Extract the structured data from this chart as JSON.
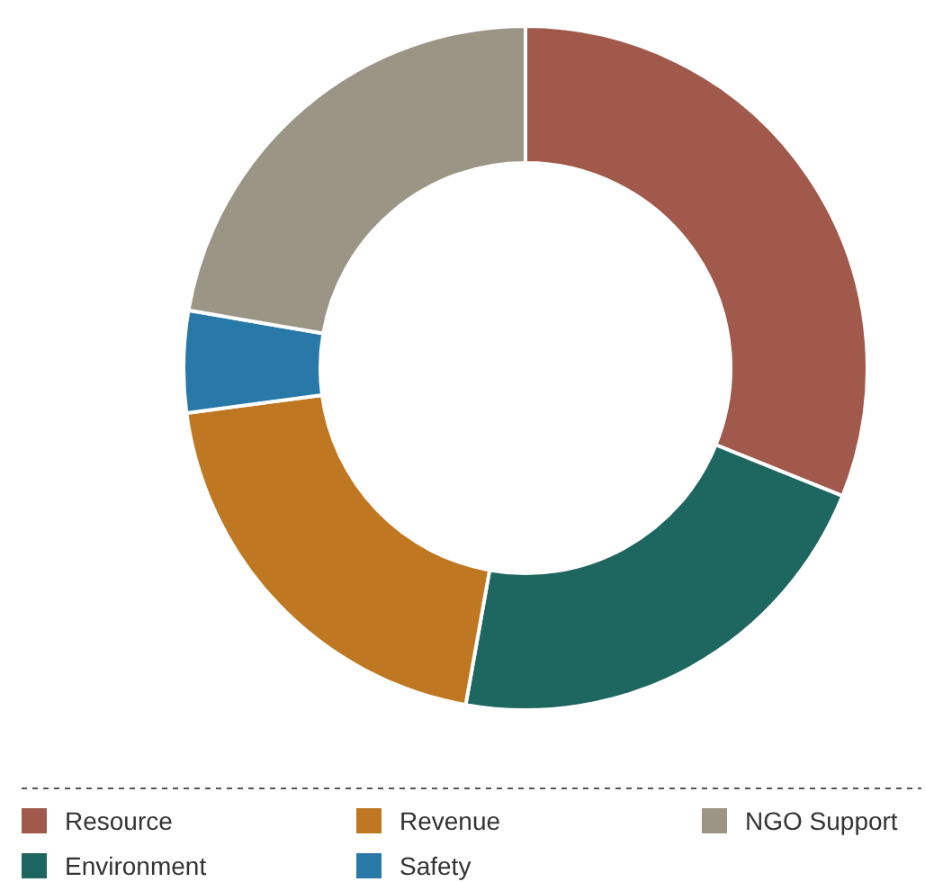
{
  "chart_data": {
    "type": "donut",
    "categories": [
      "Resource",
      "Environment",
      "Revenue",
      "Safety",
      "NGO Support"
    ],
    "values": [
      31.1,
      21.7,
      20.1,
      4.8,
      22.3
    ],
    "colors": [
      "#a0594a",
      "#1e6660",
      "#bf7722",
      "#2878a8",
      "#9b9585"
    ],
    "legend": "bottom"
  }
}
